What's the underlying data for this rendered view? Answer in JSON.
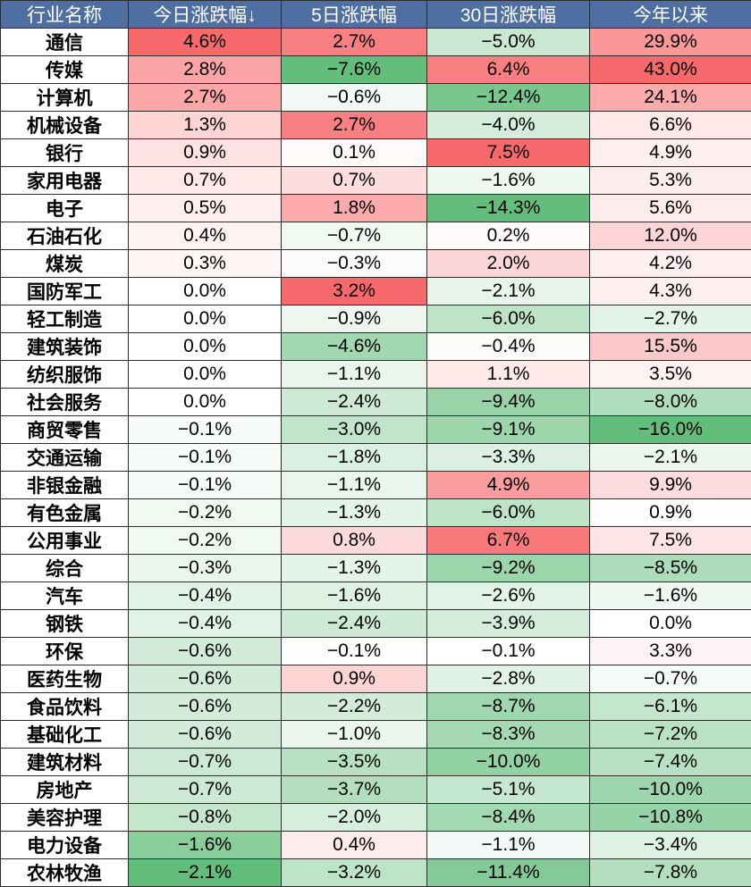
{
  "chart_data": {
    "type": "table",
    "columns": [
      "行业名称",
      "今日涨跌幅↓",
      "5日涨跌幅",
      "30日涨跌幅",
      "今年以来"
    ],
    "rows": [
      [
        "通信",
        "4.6%",
        "2.7%",
        "−5.0%",
        "29.9%"
      ],
      [
        "传媒",
        "2.8%",
        "−7.6%",
        "6.4%",
        "43.0%"
      ],
      [
        "计算机",
        "2.7%",
        "−0.6%",
        "−12.4%",
        "24.1%"
      ],
      [
        "机械设备",
        "1.3%",
        "2.7%",
        "−4.0%",
        "6.6%"
      ],
      [
        "银行",
        "0.9%",
        "0.1%",
        "7.5%",
        "4.9%"
      ],
      [
        "家用电器",
        "0.7%",
        "0.7%",
        "−1.6%",
        "5.3%"
      ],
      [
        "电子",
        "0.5%",
        "1.8%",
        "−14.3%",
        "5.6%"
      ],
      [
        "石油石化",
        "0.4%",
        "−0.7%",
        "0.2%",
        "12.0%"
      ],
      [
        "煤炭",
        "0.3%",
        "−0.3%",
        "2.0%",
        "4.2%"
      ],
      [
        "国防军工",
        "0.0%",
        "3.2%",
        "−2.1%",
        "4.3%"
      ],
      [
        "轻工制造",
        "0.0%",
        "−0.9%",
        "−6.0%",
        "−2.7%"
      ],
      [
        "建筑装饰",
        "0.0%",
        "−4.6%",
        "−0.4%",
        "15.5%"
      ],
      [
        "纺织服饰",
        "0.0%",
        "−1.1%",
        "1.1%",
        "3.5%"
      ],
      [
        "社会服务",
        "0.0%",
        "−2.4%",
        "−9.4%",
        "−8.0%"
      ],
      [
        "商贸零售",
        "−0.1%",
        "−3.0%",
        "−9.1%",
        "−16.0%"
      ],
      [
        "交通运输",
        "−0.1%",
        "−1.8%",
        "−3.3%",
        "−2.1%"
      ],
      [
        "非银金融",
        "−0.1%",
        "−1.1%",
        "4.9%",
        "9.9%"
      ],
      [
        "有色金属",
        "−0.2%",
        "−1.3%",
        "−6.0%",
        "0.9%"
      ],
      [
        "公用事业",
        "−0.2%",
        "0.8%",
        "6.7%",
        "7.5%"
      ],
      [
        "综合",
        "−0.3%",
        "−1.3%",
        "−9.2%",
        "−8.5%"
      ],
      [
        "汽车",
        "−0.4%",
        "−1.6%",
        "−2.6%",
        "−1.6%"
      ],
      [
        "钢铁",
        "−0.4%",
        "−2.4%",
        "−3.9%",
        "0.0%"
      ],
      [
        "环保",
        "−0.6%",
        "−0.1%",
        "−0.1%",
        "3.3%"
      ],
      [
        "医药生物",
        "−0.6%",
        "0.9%",
        "−2.8%",
        "−0.7%"
      ],
      [
        "食品饮料",
        "−0.6%",
        "−2.2%",
        "−8.7%",
        "−6.1%"
      ],
      [
        "基础化工",
        "−0.6%",
        "−1.0%",
        "−8.3%",
        "−7.2%"
      ],
      [
        "建筑材料",
        "−0.7%",
        "−3.5%",
        "−10.0%",
        "−7.4%"
      ],
      [
        "房地产",
        "−0.7%",
        "−3.7%",
        "−5.1%",
        "−10.0%"
      ],
      [
        "美容护理",
        "−0.8%",
        "−2.0%",
        "−8.4%",
        "−10.8%"
      ],
      [
        "电力设备",
        "−1.6%",
        "0.4%",
        "−1.1%",
        "−3.4%"
      ],
      [
        "农林牧渔",
        "−2.1%",
        "−3.2%",
        "−11.4%",
        "−7.8%"
      ]
    ],
    "color_scale": {
      "positive": "#f8696b",
      "negative": "#63be7b",
      "neutral": "#ffffff"
    }
  }
}
